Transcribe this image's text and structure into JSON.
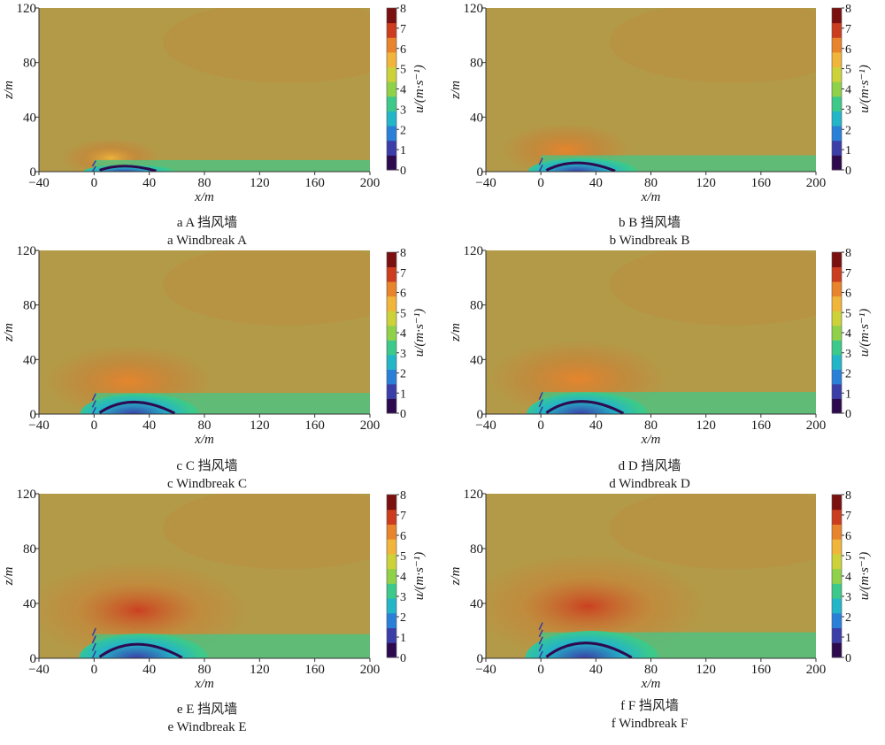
{
  "colormap": {
    "stops": [
      "#2d0a4e",
      "#3b3ea8",
      "#2a7fd8",
      "#23b5c8",
      "#3cc98a",
      "#8fd24a",
      "#cdd13a",
      "#f0b53a",
      "#e8842c",
      "#cc3c1f",
      "#7a1010"
    ],
    "background": "#b39a48"
  },
  "chart_data": [
    {
      "type": "heatmap",
      "panel": "a",
      "caption_cn": "a A 挡风墙",
      "caption_en": "a Windbreak A",
      "xlabel": "x/m",
      "ylabel": "z/m",
      "colorbar_label": "u/(m·s⁻¹)",
      "xlim": [
        -40,
        200
      ],
      "ylim": [
        0,
        120
      ],
      "clim": [
        0,
        8
      ],
      "xticks": [
        "−40",
        "0",
        "40",
        "80",
        "120",
        "160",
        "200"
      ],
      "yticks": [
        "0",
        "40",
        "80",
        "120"
      ],
      "cticks": [
        "0",
        "1",
        "2",
        "3",
        "4",
        "5",
        "6",
        "7",
        "8"
      ],
      "fence_height": 8,
      "fence_x": 0,
      "freestream_u": 4.5,
      "wake": {
        "length": 60,
        "height": 5
      },
      "jet": {
        "x": 12,
        "z": 10,
        "peak_u": 5.8
      }
    },
    {
      "type": "heatmap",
      "panel": "b",
      "caption_cn": "b B 挡风墙",
      "caption_en": "b Windbreak B",
      "xlabel": "x/m",
      "ylabel": "z/m",
      "colorbar_label": "u/(m·s⁻¹)",
      "xlim": [
        -40,
        200
      ],
      "ylim": [
        0,
        120
      ],
      "clim": [
        0,
        8
      ],
      "xticks": [
        "−40",
        "0",
        "40",
        "80",
        "120",
        "160",
        "200"
      ],
      "yticks": [
        "0",
        "40",
        "80",
        "120"
      ],
      "cticks": [
        "0",
        "1",
        "2",
        "3",
        "4",
        "5",
        "6",
        "7",
        "8"
      ],
      "fence_height": 10,
      "fence_x": 0,
      "freestream_u": 4.5,
      "wake": {
        "length": 72,
        "height": 10
      },
      "jet": {
        "x": 18,
        "z": 16,
        "peak_u": 6.0
      }
    },
    {
      "type": "heatmap",
      "panel": "c",
      "caption_cn": "c C 挡风墙",
      "caption_en": "c Windbreak C",
      "xlabel": "x/m",
      "ylabel": "z/m",
      "colorbar_label": "u/(m·s⁻¹)",
      "xlim": [
        -40,
        200
      ],
      "ylim": [
        0,
        120
      ],
      "clim": [
        0,
        8
      ],
      "xticks": [
        "−40",
        "0",
        "40",
        "80",
        "120",
        "160",
        "200"
      ],
      "yticks": [
        "0",
        "40",
        "80",
        "120"
      ],
      "cticks": [
        "0",
        "1",
        "2",
        "3",
        "4",
        "5",
        "6",
        "7",
        "8"
      ],
      "fence_height": 15,
      "fence_x": 0,
      "freestream_u": 4.5,
      "wake": {
        "length": 78,
        "height": 15
      },
      "jet": {
        "x": 25,
        "z": 24,
        "peak_u": 6.3
      }
    },
    {
      "type": "heatmap",
      "panel": "d",
      "caption_cn": "d D 挡风墙",
      "caption_en": "d Windbreak D",
      "xlabel": "x/m",
      "ylabel": "z/m",
      "colorbar_label": "u/(m·s⁻¹)",
      "xlim": [
        -40,
        200
      ],
      "ylim": [
        0,
        120
      ],
      "clim": [
        0,
        8
      ],
      "xticks": [
        "−40",
        "0",
        "40",
        "80",
        "120",
        "160",
        "200"
      ],
      "yticks": [
        "0",
        "40",
        "80",
        "120"
      ],
      "cticks": [
        "0",
        "1",
        "2",
        "3",
        "4",
        "5",
        "6",
        "7",
        "8"
      ],
      "fence_height": 16,
      "fence_x": 0,
      "freestream_u": 4.5,
      "wake": {
        "length": 80,
        "height": 16
      },
      "jet": {
        "x": 27,
        "z": 26,
        "peak_u": 6.4
      }
    },
    {
      "type": "heatmap",
      "panel": "e",
      "caption_cn": "e E 挡风墙",
      "caption_en": "e Windbreak E",
      "xlabel": "x/m",
      "ylabel": "z/m",
      "colorbar_label": "u/(m·s⁻¹)",
      "xlim": [
        -40,
        200
      ],
      "ylim": [
        0,
        120
      ],
      "clim": [
        0,
        8
      ],
      "xticks": [
        "−40",
        "0",
        "40",
        "80",
        "120",
        "160",
        "200"
      ],
      "yticks": [
        "0",
        "40",
        "80",
        "120"
      ],
      "cticks": [
        "0",
        "1",
        "2",
        "3",
        "4",
        "5",
        "6",
        "7",
        "8"
      ],
      "fence_height": 22,
      "fence_x": 0,
      "freestream_u": 4.5,
      "wake": {
        "length": 85,
        "height": 18
      },
      "jet": {
        "x": 32,
        "z": 35,
        "peak_u": 6.8
      }
    },
    {
      "type": "heatmap",
      "panel": "f",
      "caption_cn": "f F 挡风墙",
      "caption_en": "f Windbreak F",
      "xlabel": "x/m",
      "ylabel": "z/m",
      "colorbar_label": "u/(m·s⁻¹)",
      "xlim": [
        -40,
        200
      ],
      "ylim": [
        0,
        120
      ],
      "clim": [
        0,
        8
      ],
      "xticks": [
        "−40",
        "0",
        "40",
        "80",
        "120",
        "160",
        "200"
      ],
      "yticks": [
        "0",
        "40",
        "80",
        "120"
      ],
      "cticks": [
        "0",
        "1",
        "2",
        "3",
        "4",
        "5",
        "6",
        "7",
        "8"
      ],
      "fence_height": 26,
      "fence_x": 0,
      "freestream_u": 4.5,
      "wake": {
        "length": 88,
        "height": 20
      },
      "jet": {
        "x": 34,
        "z": 38,
        "peak_u": 6.9
      }
    }
  ]
}
